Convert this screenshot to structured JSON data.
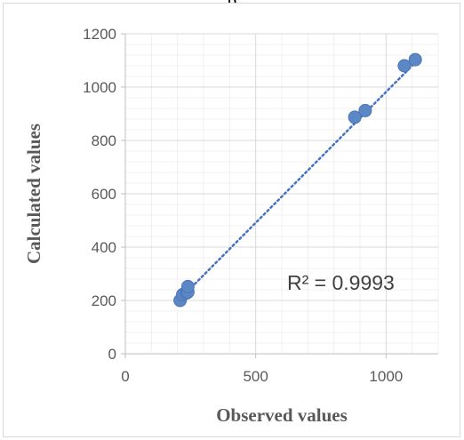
{
  "header_text": "p",
  "chart_data": {
    "type": "scatter",
    "title": "",
    "xlabel": "Observed values",
    "ylabel": "Calculated values",
    "xlim": [
      0,
      1200
    ],
    "ylim": [
      0,
      1200
    ],
    "x_ticks": [
      0,
      500,
      1000
    ],
    "y_ticks": [
      0,
      200,
      400,
      600,
      800,
      1000,
      1200
    ],
    "x_tick_labels": [
      "0",
      "500",
      "1000"
    ],
    "y_tick_labels": [
      "0",
      "200",
      "400",
      "600",
      "800",
      "1000",
      "1200"
    ],
    "grid": true,
    "series": [
      {
        "points": [
          {
            "x": 210,
            "y": 200
          },
          {
            "x": 220,
            "y": 222
          },
          {
            "x": 235,
            "y": 228
          },
          {
            "x": 240,
            "y": 232
          },
          {
            "x": 240,
            "y": 252
          },
          {
            "x": 880,
            "y": 887
          },
          {
            "x": 920,
            "y": 912
          },
          {
            "x": 1070,
            "y": 1080
          },
          {
            "x": 1112,
            "y": 1103
          }
        ],
        "color": "#5b87c5"
      }
    ],
    "trendline": {
      "type": "linear",
      "style": "dotted",
      "color": "#4472c4",
      "x_range": [
        240,
        1112
      ],
      "y_range": [
        236,
        1092
      ]
    },
    "annotations": [
      {
        "text": "R² = 0.9993"
      }
    ]
  }
}
